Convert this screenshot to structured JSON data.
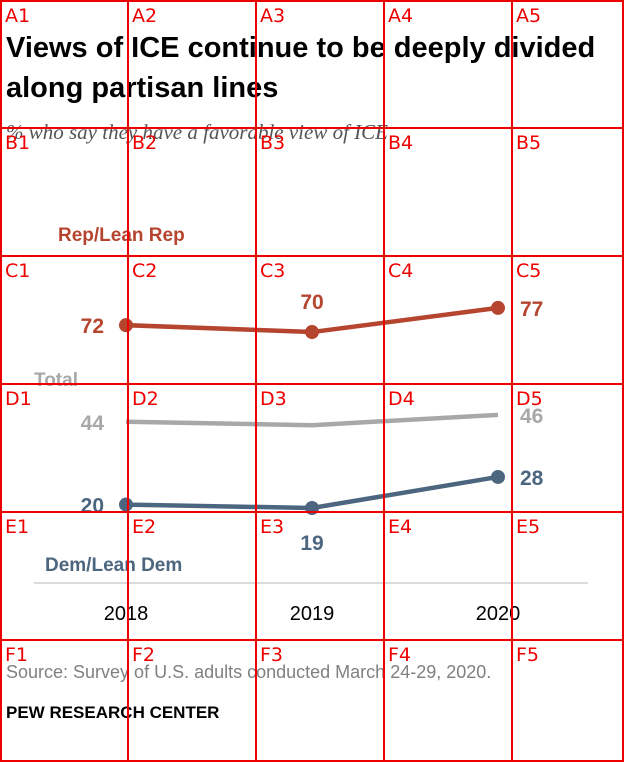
{
  "title": "Views of ICE continue to be deeply divided along partisan lines",
  "subtitle": "% who say they have a favorable view of ICE",
  "source": "Source: Survey of U.S. adults conducted March 24-29, 2020.",
  "brand": "PEW RESEARCH CENTER",
  "chart_data": {
    "type": "line",
    "x": [
      "2018",
      "2019",
      "2020"
    ],
    "ylim": [
      0,
      100
    ],
    "legend": "inline labels",
    "grid": false,
    "series": [
      {
        "name": "Rep/Lean Rep",
        "color": "#b5452f",
        "values": [
          72,
          70,
          77
        ],
        "labels": [
          "72",
          "70",
          "77"
        ],
        "markers": true
      },
      {
        "name": "Total",
        "color": "#a8a8a8",
        "values": [
          44,
          43,
          46
        ],
        "labels": [
          "44",
          "",
          "46"
        ],
        "markers": false
      },
      {
        "name": "Dem/Lean Dem",
        "color": "#4d6680",
        "values": [
          20,
          19,
          28
        ],
        "labels": [
          "20",
          "19",
          "28"
        ],
        "markers": true
      }
    ]
  },
  "grid_overlay": {
    "color": "#ee0000",
    "rows": [
      "A",
      "B",
      "C",
      "D",
      "E",
      "F"
    ],
    "cols": [
      "1",
      "2",
      "3",
      "4",
      "5"
    ],
    "labels": [
      "A1",
      "A2",
      "A3",
      "A4",
      "A5",
      "B1",
      "B2",
      "B3",
      "B4",
      "B5",
      "C1",
      "C2",
      "C3",
      "C4",
      "C5",
      "D1",
      "D2",
      "D3",
      "D4",
      "D5",
      "E1",
      "E2",
      "E3",
      "E4",
      "E5",
      "F1",
      "F2",
      "F3",
      "F4",
      "F5"
    ]
  }
}
